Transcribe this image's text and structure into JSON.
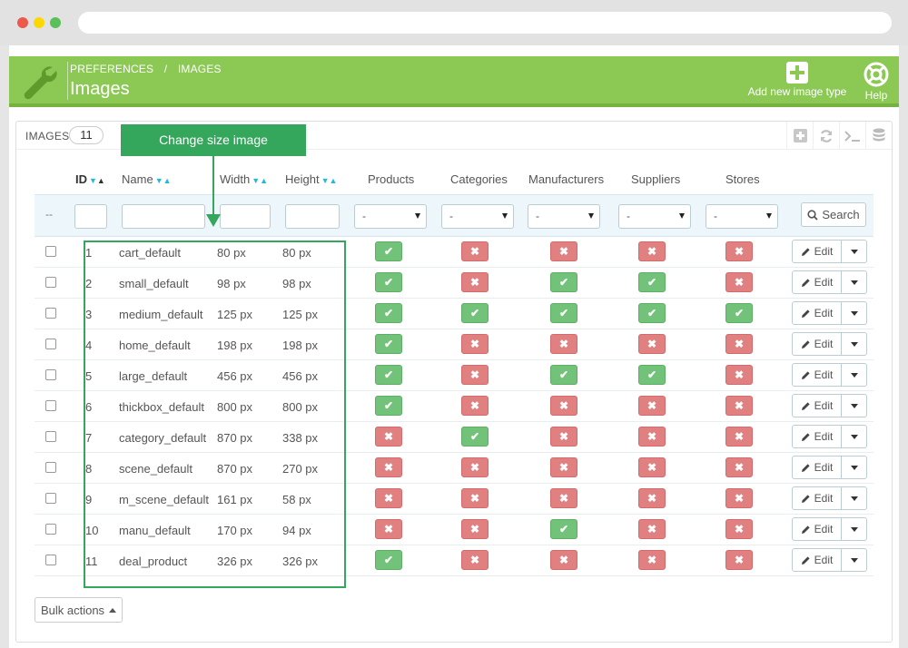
{
  "header": {
    "breadcrumb": [
      "PREFERENCES",
      "/",
      "IMAGES"
    ],
    "title": "Images",
    "add_label": "Add new image type",
    "help_label": "Help"
  },
  "panel": {
    "title": "IMAGES",
    "count": "11"
  },
  "tooltip": "Change size image",
  "columns": {
    "id": "ID",
    "name": "Name",
    "width": "Width",
    "height": "Height",
    "products": "Products",
    "categories": "Categories",
    "manufacturers": "Manufacturers",
    "suppliers": "Suppliers",
    "stores": "Stores"
  },
  "filters": {
    "dash": "--",
    "select_value": "-",
    "search_label": "Search"
  },
  "rows": [
    {
      "id": "1",
      "name": "cart_default",
      "width": "80 px",
      "height": "80 px",
      "products": true,
      "categories": false,
      "manufacturers": false,
      "suppliers": false,
      "stores": false
    },
    {
      "id": "2",
      "name": "small_default",
      "width": "98 px",
      "height": "98 px",
      "products": true,
      "categories": false,
      "manufacturers": true,
      "suppliers": true,
      "stores": false
    },
    {
      "id": "3",
      "name": "medium_default",
      "width": "125 px",
      "height": "125 px",
      "products": true,
      "categories": true,
      "manufacturers": true,
      "suppliers": true,
      "stores": true
    },
    {
      "id": "4",
      "name": "home_default",
      "width": "198 px",
      "height": "198 px",
      "products": true,
      "categories": false,
      "manufacturers": false,
      "suppliers": false,
      "stores": false
    },
    {
      "id": "5",
      "name": "large_default",
      "width": "456 px",
      "height": "456 px",
      "products": true,
      "categories": false,
      "manufacturers": true,
      "suppliers": true,
      "stores": false
    },
    {
      "id": "6",
      "name": "thickbox_default",
      "width": "800 px",
      "height": "800 px",
      "products": true,
      "categories": false,
      "manufacturers": false,
      "suppliers": false,
      "stores": false
    },
    {
      "id": "7",
      "name": "category_default",
      "width": "870 px",
      "height": "338 px",
      "products": false,
      "categories": true,
      "manufacturers": false,
      "suppliers": false,
      "stores": false
    },
    {
      "id": "8",
      "name": "scene_default",
      "width": "870 px",
      "height": "270 px",
      "products": false,
      "categories": false,
      "manufacturers": false,
      "suppliers": false,
      "stores": false
    },
    {
      "id": "9",
      "name": "m_scene_default",
      "width": "161 px",
      "height": "58 px",
      "products": false,
      "categories": false,
      "manufacturers": false,
      "suppliers": false,
      "stores": false
    },
    {
      "id": "10",
      "name": "manu_default",
      "width": "170 px",
      "height": "94 px",
      "products": false,
      "categories": false,
      "manufacturers": true,
      "suppliers": false,
      "stores": false
    },
    {
      "id": "11",
      "name": "deal_product",
      "width": "326 px",
      "height": "326 px",
      "products": true,
      "categories": false,
      "manufacturers": false,
      "suppliers": false,
      "stores": false
    }
  ],
  "row_actions": {
    "edit_label": "Edit"
  },
  "bulk_label": "Bulk actions",
  "colors": {
    "header_green": "#8bc954",
    "accent_green": "#35a75c",
    "yes": "#72c279",
    "no": "#e08080",
    "sort_blue": "#25b9d7"
  }
}
